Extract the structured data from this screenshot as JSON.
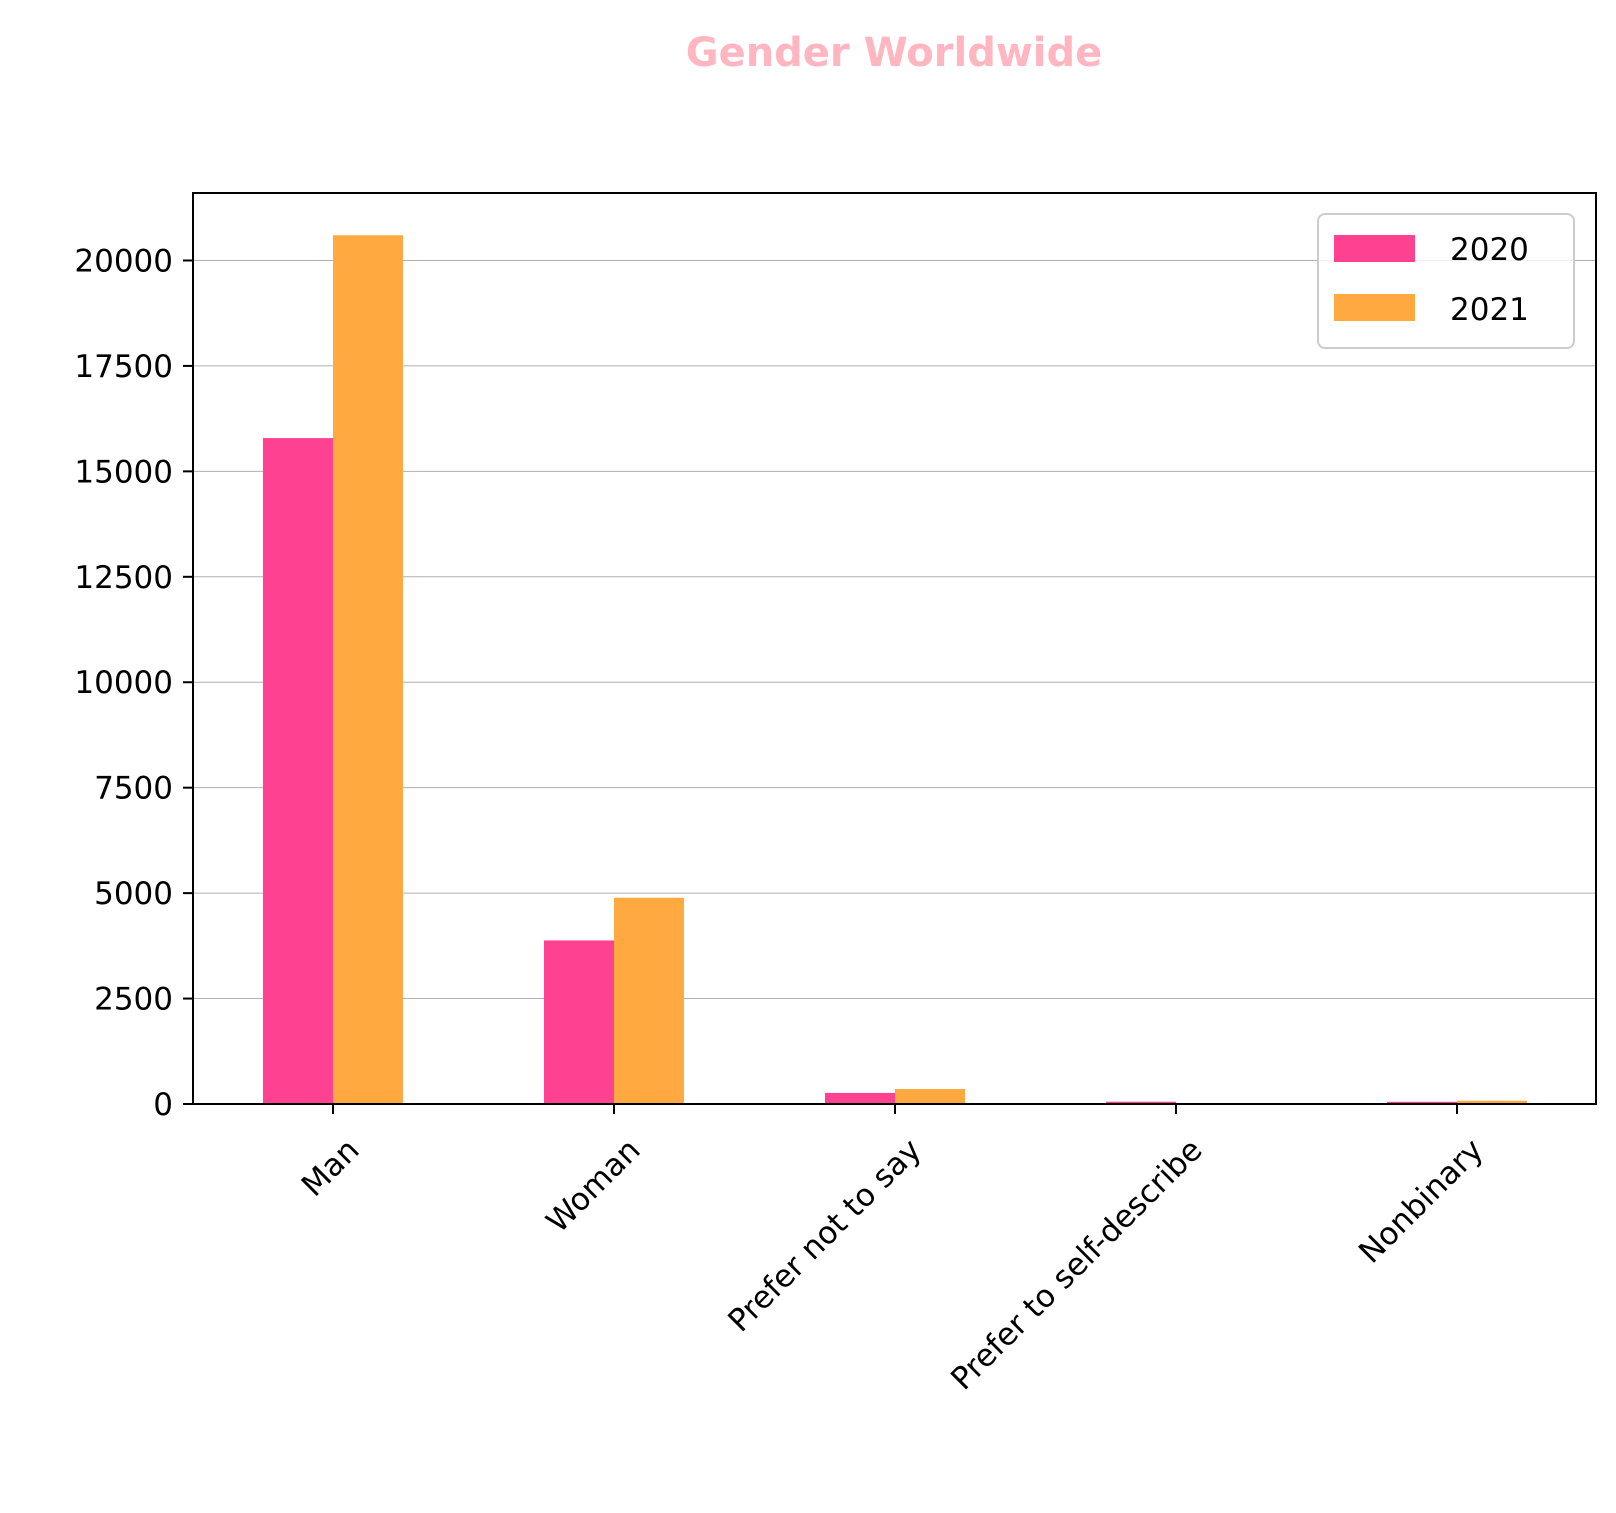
{
  "chart_data": {
    "type": "bar",
    "title": "Gender Worldwide",
    "title_color": "#FFB6C1",
    "xlabel": "",
    "ylabel": "",
    "categories": [
      "Man",
      "Woman",
      "Prefer not to say",
      "Prefer to self-describe",
      "Nonbinary"
    ],
    "series": [
      {
        "name": "2020",
        "color": "#FF4191",
        "values": [
          15789,
          3878,
          263,
          54,
          52
        ]
      },
      {
        "name": "2021",
        "color": "#FFA940",
        "values": [
          20598,
          4890,
          355,
          0,
          78
        ]
      }
    ],
    "ylim": [
      0,
      21600
    ],
    "yticks": [
      "0",
      "2500",
      "5000",
      "7500",
      "10000",
      "12500",
      "15000",
      "17500",
      "20000"
    ],
    "grid": "horizontal",
    "legend_position": "top-right"
  }
}
